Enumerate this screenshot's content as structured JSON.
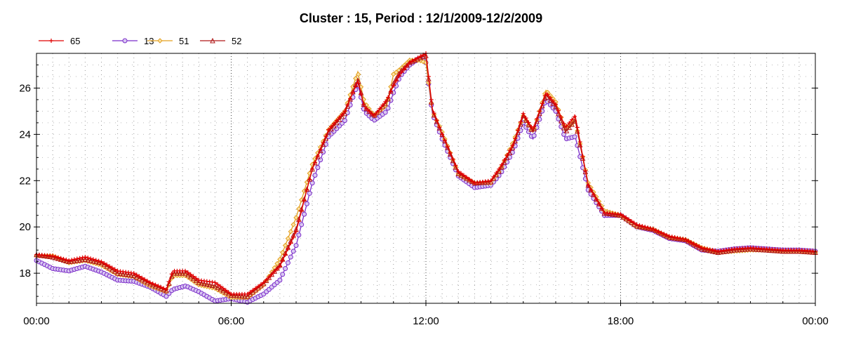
{
  "chart_data": {
    "type": "line",
    "title": "Cluster : 15, Period : 12/1/2009-12/2/2009",
    "xlabel": "",
    "ylabel": "",
    "xlim": [
      0,
      24
    ],
    "ylim": [
      16.7,
      27.5
    ],
    "x_ticks": [
      {
        "value": 0,
        "label": "00:00"
      },
      {
        "value": 6,
        "label": "06:00"
      },
      {
        "value": 12,
        "label": "12:00"
      },
      {
        "value": 18,
        "label": "18:00"
      },
      {
        "value": 24,
        "label": "00:00"
      }
    ],
    "y_ticks": [
      18,
      20,
      22,
      24,
      26
    ],
    "grid": "dotted",
    "legend_position": "top-left",
    "series": [
      {
        "name": "65",
        "color": "#e00000",
        "marker": "plus",
        "points": [
          [
            0,
            18.8
          ],
          [
            0.5,
            18.75
          ],
          [
            1,
            18.55
          ],
          [
            1.5,
            18.7
          ],
          [
            2,
            18.5
          ],
          [
            2.5,
            18.1
          ],
          [
            3,
            18.0
          ],
          [
            3.5,
            17.6
          ],
          [
            4,
            17.3
          ],
          [
            4.2,
            18.1
          ],
          [
            4.6,
            18.1
          ],
          [
            5,
            17.7
          ],
          [
            5.5,
            17.6
          ],
          [
            6,
            17.1
          ],
          [
            6.5,
            17.1
          ],
          [
            7,
            17.6
          ],
          [
            7.5,
            18.3
          ],
          [
            8,
            19.8
          ],
          [
            8.5,
            22.5
          ],
          [
            9,
            24.2
          ],
          [
            9.5,
            25.0
          ],
          [
            9.9,
            26.3
          ],
          [
            10.1,
            25.2
          ],
          [
            10.4,
            24.8
          ],
          [
            10.8,
            25.5
          ],
          [
            11,
            26.1
          ],
          [
            11.2,
            26.6
          ],
          [
            11.5,
            27.1
          ],
          [
            11.8,
            27.35
          ],
          [
            12,
            27.5
          ],
          [
            12.2,
            25.1
          ],
          [
            12.5,
            24.0
          ],
          [
            13,
            22.4
          ],
          [
            13.5,
            21.9
          ],
          [
            14,
            22.0
          ],
          [
            14.3,
            22.6
          ],
          [
            14.7,
            23.6
          ],
          [
            15,
            24.9
          ],
          [
            15.3,
            24.2
          ],
          [
            15.7,
            25.8
          ],
          [
            16,
            25.3
          ],
          [
            16.3,
            24.3
          ],
          [
            16.6,
            24.8
          ],
          [
            17,
            21.8
          ],
          [
            17.5,
            20.6
          ],
          [
            18,
            20.55
          ],
          [
            18.5,
            20.1
          ],
          [
            19,
            19.9
          ],
          [
            19.5,
            19.6
          ],
          [
            20,
            19.45
          ],
          [
            20.5,
            19.1
          ],
          [
            21,
            18.95
          ],
          [
            21.5,
            19.05
          ],
          [
            22,
            19.1
          ],
          [
            22.5,
            19.05
          ],
          [
            23,
            19.0
          ],
          [
            23.5,
            19.0
          ],
          [
            24,
            18.95
          ]
        ]
      },
      {
        "name": "13",
        "color": "#7b2cc9",
        "marker": "circle",
        "points": [
          [
            0,
            18.55
          ],
          [
            0.5,
            18.2
          ],
          [
            1,
            18.1
          ],
          [
            1.5,
            18.3
          ],
          [
            2,
            18.05
          ],
          [
            2.5,
            17.7
          ],
          [
            3,
            17.65
          ],
          [
            3.5,
            17.4
          ],
          [
            4,
            17.0
          ],
          [
            4.2,
            17.3
          ],
          [
            4.6,
            17.45
          ],
          [
            5,
            17.2
          ],
          [
            5.5,
            16.8
          ],
          [
            6,
            16.9
          ],
          [
            6.5,
            16.75
          ],
          [
            7,
            17.1
          ],
          [
            7.5,
            17.7
          ],
          [
            8,
            19.2
          ],
          [
            8.5,
            21.9
          ],
          [
            9,
            23.9
          ],
          [
            9.5,
            24.6
          ],
          [
            9.9,
            26.2
          ],
          [
            10.1,
            25.0
          ],
          [
            10.4,
            24.6
          ],
          [
            10.8,
            25.0
          ],
          [
            11,
            25.8
          ],
          [
            11.2,
            26.5
          ],
          [
            11.5,
            27.0
          ],
          [
            11.8,
            27.3
          ],
          [
            12,
            27.1
          ],
          [
            12.2,
            24.9
          ],
          [
            12.5,
            23.8
          ],
          [
            13,
            22.2
          ],
          [
            13.5,
            21.7
          ],
          [
            14,
            21.8
          ],
          [
            14.3,
            22.3
          ],
          [
            14.7,
            23.3
          ],
          [
            15,
            24.5
          ],
          [
            15.3,
            23.8
          ],
          [
            15.7,
            25.5
          ],
          [
            16,
            25.0
          ],
          [
            16.3,
            23.8
          ],
          [
            16.6,
            23.9
          ],
          [
            17,
            21.6
          ],
          [
            17.5,
            20.5
          ],
          [
            18,
            20.5
          ],
          [
            18.5,
            20.0
          ],
          [
            19,
            19.85
          ],
          [
            19.5,
            19.5
          ],
          [
            20,
            19.4
          ],
          [
            20.5,
            19.0
          ],
          [
            21,
            18.95
          ],
          [
            21.5,
            19.05
          ],
          [
            22,
            19.1
          ],
          [
            22.5,
            19.05
          ],
          [
            23,
            19.0
          ],
          [
            23.5,
            19.0
          ],
          [
            24,
            18.95
          ]
        ]
      },
      {
        "name": "51",
        "color": "#e3a020",
        "marker": "diamond",
        "points": [
          [
            0,
            18.75
          ],
          [
            0.5,
            18.75
          ],
          [
            1,
            18.45
          ],
          [
            1.5,
            18.55
          ],
          [
            2,
            18.35
          ],
          [
            2.5,
            17.95
          ],
          [
            3,
            17.85
          ],
          [
            3.5,
            17.45
          ],
          [
            4,
            17.2
          ],
          [
            4.2,
            17.9
          ],
          [
            4.6,
            17.9
          ],
          [
            5,
            17.5
          ],
          [
            5.5,
            17.35
          ],
          [
            6,
            16.95
          ],
          [
            6.5,
            16.95
          ],
          [
            7,
            17.5
          ],
          [
            7.5,
            18.6
          ],
          [
            8,
            20.4
          ],
          [
            8.5,
            22.7
          ],
          [
            9,
            24.2
          ],
          [
            9.5,
            25.0
          ],
          [
            9.9,
            26.7
          ],
          [
            10.1,
            25.4
          ],
          [
            10.4,
            24.8
          ],
          [
            10.8,
            25.3
          ],
          [
            11,
            26.6
          ],
          [
            11.2,
            26.8
          ],
          [
            11.5,
            27.2
          ],
          [
            11.8,
            27.2
          ],
          [
            12,
            27.1
          ],
          [
            12.2,
            25.0
          ],
          [
            12.5,
            24.1
          ],
          [
            13,
            22.3
          ],
          [
            13.5,
            21.9
          ],
          [
            14,
            21.9
          ],
          [
            14.3,
            22.5
          ],
          [
            14.7,
            23.7
          ],
          [
            15,
            24.8
          ],
          [
            15.3,
            24.1
          ],
          [
            15.7,
            25.9
          ],
          [
            16,
            25.4
          ],
          [
            16.3,
            24.2
          ],
          [
            16.6,
            24.6
          ],
          [
            17,
            21.9
          ],
          [
            17.5,
            20.7
          ],
          [
            18,
            20.5
          ],
          [
            18.5,
            20.0
          ],
          [
            19,
            19.9
          ],
          [
            19.5,
            19.55
          ],
          [
            20,
            19.45
          ],
          [
            20.5,
            19.1
          ],
          [
            21,
            18.9
          ],
          [
            21.5,
            18.95
          ],
          [
            22,
            19.0
          ],
          [
            22.5,
            19.0
          ],
          [
            23,
            18.95
          ],
          [
            23.5,
            18.95
          ],
          [
            24,
            18.9
          ]
        ]
      },
      {
        "name": "52",
        "color": "#b01818",
        "marker": "triangle",
        "points": [
          [
            0,
            18.8
          ],
          [
            0.5,
            18.7
          ],
          [
            1,
            18.5
          ],
          [
            1.5,
            18.6
          ],
          [
            2,
            18.45
          ],
          [
            2.5,
            18.0
          ],
          [
            3,
            17.9
          ],
          [
            3.5,
            17.55
          ],
          [
            4,
            17.25
          ],
          [
            4.2,
            18.0
          ],
          [
            4.6,
            18.0
          ],
          [
            5,
            17.6
          ],
          [
            5.5,
            17.45
          ],
          [
            6,
            17.05
          ],
          [
            6.5,
            17.0
          ],
          [
            7,
            17.55
          ],
          [
            7.5,
            18.35
          ],
          [
            8,
            19.9
          ],
          [
            8.5,
            22.5
          ],
          [
            9,
            24.1
          ],
          [
            9.5,
            24.9
          ],
          [
            9.9,
            26.4
          ],
          [
            10.1,
            25.2
          ],
          [
            10.4,
            24.8
          ],
          [
            10.8,
            25.4
          ],
          [
            11,
            26.2
          ],
          [
            11.2,
            26.7
          ],
          [
            11.5,
            27.1
          ],
          [
            11.8,
            27.3
          ],
          [
            12,
            27.4
          ],
          [
            12.2,
            25.0
          ],
          [
            12.5,
            24.0
          ],
          [
            13,
            22.3
          ],
          [
            13.5,
            21.9
          ],
          [
            14,
            21.95
          ],
          [
            14.3,
            22.5
          ],
          [
            14.7,
            23.5
          ],
          [
            15,
            24.8
          ],
          [
            15.3,
            24.1
          ],
          [
            15.7,
            25.7
          ],
          [
            16,
            25.2
          ],
          [
            16.3,
            24.1
          ],
          [
            16.6,
            24.6
          ],
          [
            17,
            21.8
          ],
          [
            17.5,
            20.6
          ],
          [
            18,
            20.5
          ],
          [
            18.5,
            20.05
          ],
          [
            19,
            19.9
          ],
          [
            19.5,
            19.55
          ],
          [
            20,
            19.45
          ],
          [
            20.5,
            19.05
          ],
          [
            21,
            18.9
          ],
          [
            21.5,
            19.0
          ],
          [
            22,
            19.05
          ],
          [
            22.5,
            19.0
          ],
          [
            23,
            18.95
          ],
          [
            23.5,
            18.95
          ],
          [
            24,
            18.9
          ]
        ]
      }
    ]
  }
}
